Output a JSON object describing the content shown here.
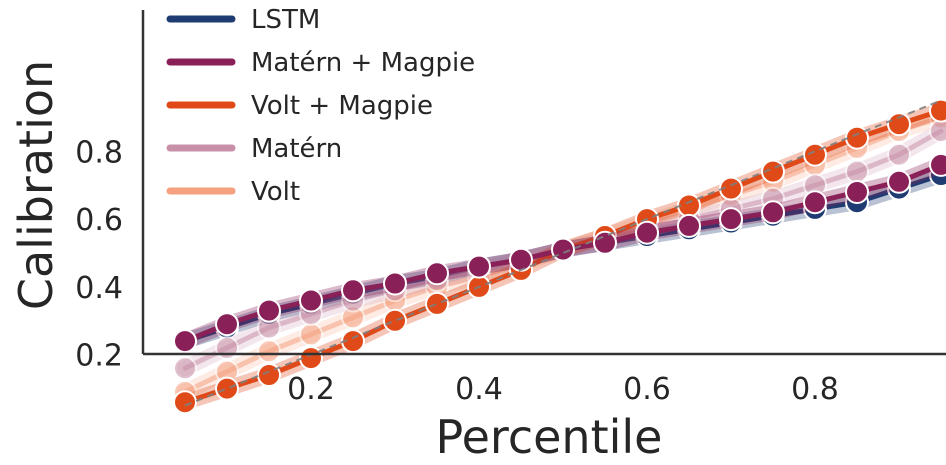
{
  "chart_data": {
    "type": "line",
    "title": "",
    "xlabel": "Percentile",
    "ylabel": "Calibration",
    "xlim": [
      0.0,
      1.0
    ],
    "ylim": [
      0.0,
      1.0
    ],
    "x_ticks": [
      0.2,
      0.4,
      0.6,
      0.8
    ],
    "x_tick_labels": [
      "0.2",
      "0.4",
      "0.6",
      "0.8"
    ],
    "y_ticks": [
      0.2,
      0.4,
      0.6,
      0.8
    ],
    "y_tick_labels": [
      "0.2",
      "0.4",
      "0.6",
      "0.8"
    ],
    "grid": false,
    "legend_position": "top-left",
    "reference_line": {
      "style": "dashed",
      "color": "#7f7f7f",
      "x": [
        0.05,
        0.95
      ],
      "y": [
        0.05,
        0.95
      ]
    },
    "x": [
      0.05,
      0.1,
      0.15,
      0.2,
      0.25,
      0.3,
      0.35,
      0.4,
      0.45,
      0.5,
      0.55,
      0.6,
      0.65,
      0.7,
      0.75,
      0.8,
      0.85,
      0.9,
      0.95
    ],
    "series": [
      {
        "name": "LSTM",
        "color": "#1f3c72",
        "values": [
          0.24,
          0.28,
          0.32,
          0.35,
          0.38,
          0.41,
          0.43,
          0.46,
          0.48,
          0.51,
          0.53,
          0.55,
          0.57,
          0.59,
          0.61,
          0.63,
          0.65,
          0.69,
          0.73
        ]
      },
      {
        "name": "Volt",
        "color": "#f5a07f",
        "values": [
          0.09,
          0.15,
          0.21,
          0.26,
          0.31,
          0.36,
          0.4,
          0.43,
          0.47,
          0.51,
          0.55,
          0.59,
          0.63,
          0.67,
          0.71,
          0.76,
          0.81,
          0.86,
          0.9
        ]
      },
      {
        "name": "Matérn",
        "color": "#c890a8",
        "values": [
          0.16,
          0.22,
          0.28,
          0.32,
          0.36,
          0.39,
          0.42,
          0.45,
          0.48,
          0.51,
          0.54,
          0.57,
          0.6,
          0.63,
          0.66,
          0.7,
          0.74,
          0.79,
          0.86
        ]
      },
      {
        "name": "Volt + Magpie",
        "color": "#e04a18",
        "values": [
          0.06,
          0.1,
          0.14,
          0.19,
          0.24,
          0.3,
          0.35,
          0.4,
          0.45,
          0.51,
          0.55,
          0.6,
          0.64,
          0.69,
          0.74,
          0.79,
          0.84,
          0.88,
          0.92
        ]
      },
      {
        "name": "Matérn + Magpie",
        "color": "#8a2058",
        "values": [
          0.24,
          0.29,
          0.33,
          0.36,
          0.39,
          0.41,
          0.44,
          0.46,
          0.48,
          0.51,
          0.53,
          0.56,
          0.58,
          0.6,
          0.62,
          0.65,
          0.68,
          0.71,
          0.76
        ]
      }
    ],
    "legend_order": [
      "LSTM",
      "Matérn + Magpie",
      "Volt + Magpie",
      "Matérn",
      "Volt"
    ]
  }
}
